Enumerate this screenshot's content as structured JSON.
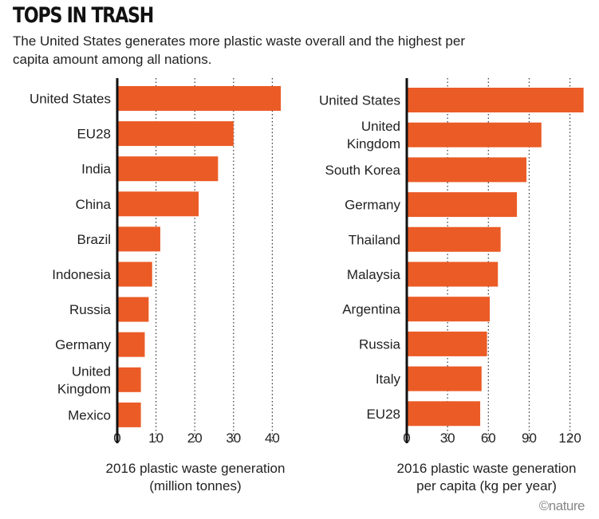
{
  "title": "TOPS IN TRASH",
  "subtitle": "The United States generates more plastic waste overall and the highest per capita amount among all nations.",
  "logo": "©nature",
  "colors": {
    "bar": "#eb5b26",
    "axis": "#111111",
    "grid": "#333333"
  },
  "chart_data": [
    {
      "type": "bar",
      "orientation": "horizontal",
      "categories": [
        "United States",
        "EU28",
        "India",
        "China",
        "Brazil",
        "Indonesia",
        "Russia",
        "Germany",
        "United Kingdom",
        "Mexico"
      ],
      "category_lines": [
        [
          "United States"
        ],
        [
          "EU28"
        ],
        [
          "India"
        ],
        [
          "China"
        ],
        [
          "Brazil"
        ],
        [
          "Indonesia"
        ],
        [
          "Russia"
        ],
        [
          "Germany"
        ],
        [
          "United",
          "Kingdom"
        ],
        [
          "Mexico"
        ]
      ],
      "values": [
        42.2,
        30.0,
        26.0,
        21.0,
        11.1,
        9.0,
        8.1,
        7.1,
        6.1,
        6.1
      ],
      "xlabel": [
        "2016 plastic waste generation",
        "(million tonnes)"
      ],
      "xticks": [
        "0",
        "10",
        "20",
        "30",
        "40"
      ],
      "tick_values": [
        0,
        10,
        20,
        30,
        40
      ],
      "xlim": [
        0,
        42.7
      ],
      "grid": "vertical dotted"
    },
    {
      "type": "bar",
      "orientation": "horizontal",
      "categories": [
        "United States",
        "United Kingdom",
        "South Korea",
        "Germany",
        "Thailand",
        "Malaysia",
        "Argentina",
        "Russia",
        "Italy",
        "EU28"
      ],
      "category_lines": [
        [
          "United States"
        ],
        [
          "United",
          "Kingdom"
        ],
        [
          "South Korea"
        ],
        [
          "Germany"
        ],
        [
          "Thailand"
        ],
        [
          "Malaysia"
        ],
        [
          "Argentina"
        ],
        [
          "Russia"
        ],
        [
          "Italy"
        ],
        [
          "EU28"
        ]
      ],
      "values": [
        130,
        99,
        88,
        81,
        69,
        67,
        61,
        59,
        55,
        54
      ],
      "xlabel": [
        "2016 plastic waste generation",
        "per capita (kg per year)"
      ],
      "xticks": [
        "0",
        "30",
        "60",
        "90",
        "120"
      ],
      "tick_values": [
        0,
        30,
        60,
        90,
        120
      ],
      "xlim": [
        0,
        130
      ],
      "grid": "vertical dotted"
    }
  ]
}
